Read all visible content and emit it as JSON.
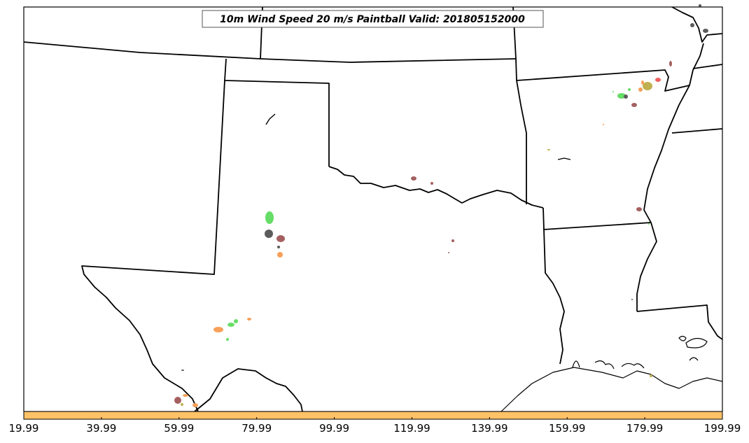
{
  "title": "10m Wind Speed 20 m/s Paintball Valid: 201805152000",
  "colorbar": {
    "color": "#ffc266",
    "ticks": [
      "19.99",
      "39.99",
      "59.99",
      "79.99",
      "99.99",
      "119.99",
      "139.99",
      "159.99",
      "179.99",
      "199.99"
    ]
  },
  "colors": {
    "green": "#66dd66",
    "gray": "#5c5c5c",
    "brown": "#a46060",
    "orange": "#f8a05a",
    "red": "#f06060",
    "olive": "#c0b050"
  }
}
